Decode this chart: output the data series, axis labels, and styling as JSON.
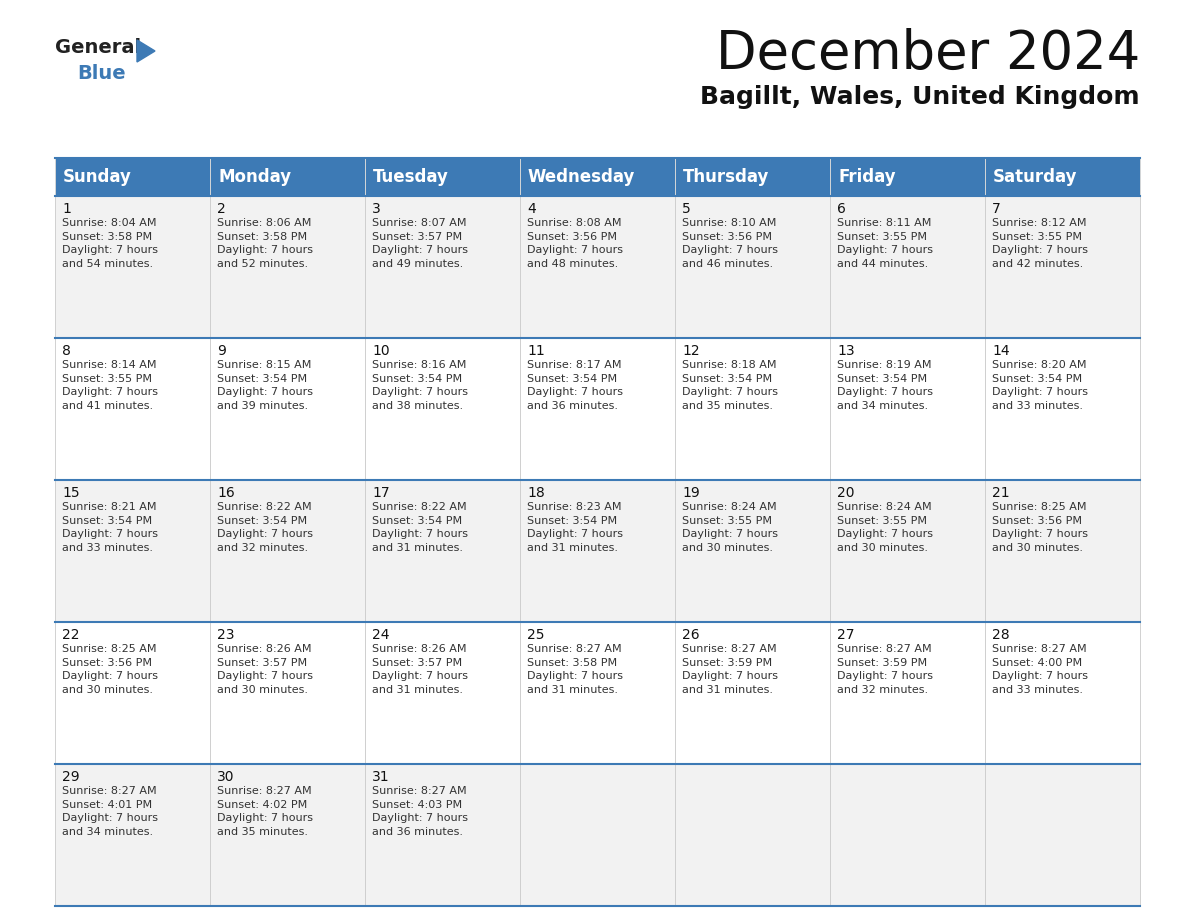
{
  "title": "December 2024",
  "subtitle": "Bagillt, Wales, United Kingdom",
  "header_color": "#3d7ab5",
  "header_text_color": "#ffffff",
  "background_color": "#ffffff",
  "row_bg_colors": [
    "#f2f2f2",
    "#ffffff",
    "#f2f2f2",
    "#ffffff",
    "#f2f2f2"
  ],
  "border_color": "#3d7ab5",
  "cell_border_color": "#cccccc",
  "days_of_week": [
    "Sunday",
    "Monday",
    "Tuesday",
    "Wednesday",
    "Thursday",
    "Friday",
    "Saturday"
  ],
  "weeks": [
    [
      {
        "day": 1,
        "sunrise": "8:04 AM",
        "sunset": "3:58 PM",
        "daylight": "7 hours\nand 54 minutes."
      },
      {
        "day": 2,
        "sunrise": "8:06 AM",
        "sunset": "3:58 PM",
        "daylight": "7 hours\nand 52 minutes."
      },
      {
        "day": 3,
        "sunrise": "8:07 AM",
        "sunset": "3:57 PM",
        "daylight": "7 hours\nand 49 minutes."
      },
      {
        "day": 4,
        "sunrise": "8:08 AM",
        "sunset": "3:56 PM",
        "daylight": "7 hours\nand 48 minutes."
      },
      {
        "day": 5,
        "sunrise": "8:10 AM",
        "sunset": "3:56 PM",
        "daylight": "7 hours\nand 46 minutes."
      },
      {
        "day": 6,
        "sunrise": "8:11 AM",
        "sunset": "3:55 PM",
        "daylight": "7 hours\nand 44 minutes."
      },
      {
        "day": 7,
        "sunrise": "8:12 AM",
        "sunset": "3:55 PM",
        "daylight": "7 hours\nand 42 minutes."
      }
    ],
    [
      {
        "day": 8,
        "sunrise": "8:14 AM",
        "sunset": "3:55 PM",
        "daylight": "7 hours\nand 41 minutes."
      },
      {
        "day": 9,
        "sunrise": "8:15 AM",
        "sunset": "3:54 PM",
        "daylight": "7 hours\nand 39 minutes."
      },
      {
        "day": 10,
        "sunrise": "8:16 AM",
        "sunset": "3:54 PM",
        "daylight": "7 hours\nand 38 minutes."
      },
      {
        "day": 11,
        "sunrise": "8:17 AM",
        "sunset": "3:54 PM",
        "daylight": "7 hours\nand 36 minutes."
      },
      {
        "day": 12,
        "sunrise": "8:18 AM",
        "sunset": "3:54 PM",
        "daylight": "7 hours\nand 35 minutes."
      },
      {
        "day": 13,
        "sunrise": "8:19 AM",
        "sunset": "3:54 PM",
        "daylight": "7 hours\nand 34 minutes."
      },
      {
        "day": 14,
        "sunrise": "8:20 AM",
        "sunset": "3:54 PM",
        "daylight": "7 hours\nand 33 minutes."
      }
    ],
    [
      {
        "day": 15,
        "sunrise": "8:21 AM",
        "sunset": "3:54 PM",
        "daylight": "7 hours\nand 33 minutes."
      },
      {
        "day": 16,
        "sunrise": "8:22 AM",
        "sunset": "3:54 PM",
        "daylight": "7 hours\nand 32 minutes."
      },
      {
        "day": 17,
        "sunrise": "8:22 AM",
        "sunset": "3:54 PM",
        "daylight": "7 hours\nand 31 minutes."
      },
      {
        "day": 18,
        "sunrise": "8:23 AM",
        "sunset": "3:54 PM",
        "daylight": "7 hours\nand 31 minutes."
      },
      {
        "day": 19,
        "sunrise": "8:24 AM",
        "sunset": "3:55 PM",
        "daylight": "7 hours\nand 30 minutes."
      },
      {
        "day": 20,
        "sunrise": "8:24 AM",
        "sunset": "3:55 PM",
        "daylight": "7 hours\nand 30 minutes."
      },
      {
        "day": 21,
        "sunrise": "8:25 AM",
        "sunset": "3:56 PM",
        "daylight": "7 hours\nand 30 minutes."
      }
    ],
    [
      {
        "day": 22,
        "sunrise": "8:25 AM",
        "sunset": "3:56 PM",
        "daylight": "7 hours\nand 30 minutes."
      },
      {
        "day": 23,
        "sunrise": "8:26 AM",
        "sunset": "3:57 PM",
        "daylight": "7 hours\nand 30 minutes."
      },
      {
        "day": 24,
        "sunrise": "8:26 AM",
        "sunset": "3:57 PM",
        "daylight": "7 hours\nand 31 minutes."
      },
      {
        "day": 25,
        "sunrise": "8:27 AM",
        "sunset": "3:58 PM",
        "daylight": "7 hours\nand 31 minutes."
      },
      {
        "day": 26,
        "sunrise": "8:27 AM",
        "sunset": "3:59 PM",
        "daylight": "7 hours\nand 31 minutes."
      },
      {
        "day": 27,
        "sunrise": "8:27 AM",
        "sunset": "3:59 PM",
        "daylight": "7 hours\nand 32 minutes."
      },
      {
        "day": 28,
        "sunrise": "8:27 AM",
        "sunset": "4:00 PM",
        "daylight": "7 hours\nand 33 minutes."
      }
    ],
    [
      {
        "day": 29,
        "sunrise": "8:27 AM",
        "sunset": "4:01 PM",
        "daylight": "7 hours\nand 34 minutes."
      },
      {
        "day": 30,
        "sunrise": "8:27 AM",
        "sunset": "4:02 PM",
        "daylight": "7 hours\nand 35 minutes."
      },
      {
        "day": 31,
        "sunrise": "8:27 AM",
        "sunset": "4:03 PM",
        "daylight": "7 hours\nand 36 minutes."
      },
      null,
      null,
      null,
      null
    ]
  ],
  "title_fontsize": 38,
  "subtitle_fontsize": 18,
  "header_fontsize": 12,
  "day_num_fontsize": 10,
  "cell_text_fontsize": 8
}
